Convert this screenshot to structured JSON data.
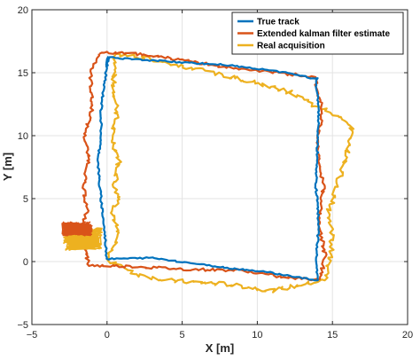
{
  "chart_data": {
    "type": "line",
    "title": "",
    "xlabel": "X [m]",
    "ylabel": "Y [m]",
    "xlim": [
      -5,
      20
    ],
    "ylim": [
      -5,
      20
    ],
    "xticks": [
      -5,
      0,
      5,
      10,
      15,
      20
    ],
    "yticks": [
      -5,
      0,
      5,
      10,
      15,
      20
    ],
    "grid": true,
    "legend_position": "top-right",
    "series": [
      {
        "name": "True track",
        "color": "#0072BD",
        "x": [
          0.1,
          -0.2,
          -0.4,
          -0.4,
          -0.6,
          -0.5,
          -0.3,
          0.0,
          3.0,
          8.0,
          10.5,
          14.0,
          13.9,
          14.1,
          13.9,
          14.0,
          14.1,
          13.9,
          14.0,
          13.5,
          12.0,
          8.0,
          4.0,
          0.2,
          -0.1,
          0.1
        ],
        "y": [
          16.3,
          14.0,
          12.0,
          10.0,
          8.0,
          6.0,
          4.0,
          0.2,
          0.3,
          -0.5,
          -0.8,
          -1.5,
          0.0,
          3.0,
          6.0,
          9.0,
          12.0,
          14.0,
          14.5,
          14.6,
          15.0,
          15.6,
          15.9,
          16.2,
          15.5,
          16.3
        ]
      },
      {
        "name": "Extended kalman filter estimate",
        "color": "#D95319",
        "x": [
          -0.5,
          -1.1,
          -1.0,
          -1.5,
          -1.2,
          -1.6,
          -1.3,
          -1.8,
          -1.5,
          -1.2,
          2.0,
          5.0,
          9.0,
          12.0,
          14.2,
          14.5,
          14.1,
          14.4,
          14.0,
          14.3,
          13.8,
          12.0,
          10.0,
          7.0,
          4.0,
          1.0,
          0.0,
          -0.5
        ],
        "y": [
          16.5,
          15.0,
          12.0,
          10.0,
          8.0,
          6.0,
          4.0,
          2.5,
          1.0,
          -0.3,
          -0.4,
          -0.6,
          -0.7,
          -1.3,
          -1.4,
          0.5,
          3.0,
          6.0,
          9.0,
          12.0,
          14.7,
          14.9,
          15.2,
          15.6,
          16.2,
          16.6,
          16.6,
          16.5
        ]
      },
      {
        "name": "Real acquisition",
        "color": "#EDB120",
        "x": [
          0.6,
          0.4,
          0.7,
          0.3,
          0.8,
          0.5,
          0.9,
          0.4,
          0.7,
          0.3,
          0.0,
          2.0,
          4.0,
          8.0,
          11.0,
          14.5,
          15.0,
          14.8,
          15.8,
          16.3,
          16.1,
          15.9,
          15.5,
          14.5,
          12.0,
          10.0,
          7.0,
          5.0,
          2.0,
          0.6
        ],
        "y": [
          16.5,
          14.0,
          12.0,
          10.0,
          8.0,
          6.0,
          5.0,
          4.0,
          2.0,
          1.0,
          0.2,
          -1.0,
          -1.5,
          -1.8,
          -2.3,
          -1.5,
          1.0,
          4.0,
          8.0,
          10.5,
          11.0,
          11.3,
          11.6,
          12.0,
          13.5,
          14.2,
          15.0,
          15.5,
          16.3,
          16.5
        ]
      }
    ]
  }
}
